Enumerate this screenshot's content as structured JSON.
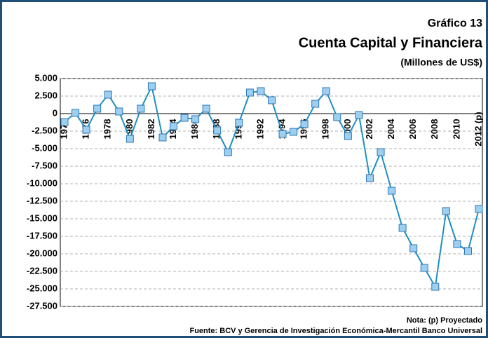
{
  "chart_data": {
    "type": "line",
    "title": "Gráfico 13",
    "subtitle": "Cuenta Capital y Financiera",
    "y_label": "(Millones de US$)",
    "note": "Nota: (p) Proyectado",
    "source": "Fuente: BCV y Gerencia de Investigación Económica-Mercantil Banco Universal",
    "categories": [
      "1974",
      null,
      "1976",
      null,
      "1978",
      null,
      "1980",
      null,
      "1982",
      null,
      "1984",
      null,
      "1986",
      null,
      "1988",
      null,
      "1990",
      null,
      "1992",
      null,
      "1994",
      null,
      "1996",
      null,
      "1998",
      null,
      "2000",
      null,
      "2002",
      null,
      "2004",
      null,
      "2006",
      null,
      "2008",
      null,
      "2010",
      null,
      "2012 (p)"
    ],
    "series": [
      {
        "name": "Cuenta Capital y Financiera",
        "color": "#1f8fc0",
        "values": [
          -1200,
          100,
          -2300,
          700,
          2700,
          300,
          -3600,
          700,
          3900,
          -3400,
          -1800,
          -600,
          -800,
          700,
          -2400,
          -5500,
          -1300,
          3000,
          3200,
          1900,
          -2900,
          -2600,
          -1500,
          1400,
          3200,
          -500,
          -3200,
          -200,
          -9200,
          -5500,
          -11000,
          -16300,
          -19200,
          -22000,
          -24700,
          -13900,
          -18600,
          -19600,
          -13600
        ]
      }
    ],
    "ylim": [
      -27500,
      5000
    ],
    "yticks": [
      {
        "value": -27500,
        "label": "-27.500"
      },
      {
        "value": -25000,
        "label": "-25.000"
      },
      {
        "value": -22500,
        "label": "-22.500"
      },
      {
        "value": -20000,
        "label": "-20.000"
      },
      {
        "value": -17500,
        "label": "-17.500"
      },
      {
        "value": -15000,
        "label": "-15.000"
      },
      {
        "value": -12500,
        "label": "-12.500"
      },
      {
        "value": -10000,
        "label": "-10.000"
      },
      {
        "value": -7500,
        "label": "-7.500"
      },
      {
        "value": -5000,
        "label": "-5.000"
      },
      {
        "value": -2500,
        "label": "-2.500"
      },
      0,
      {
        "value": 2500,
        "label": "2.500"
      },
      {
        "value": 5000,
        "label": "5.000"
      }
    ],
    "grid": true
  }
}
